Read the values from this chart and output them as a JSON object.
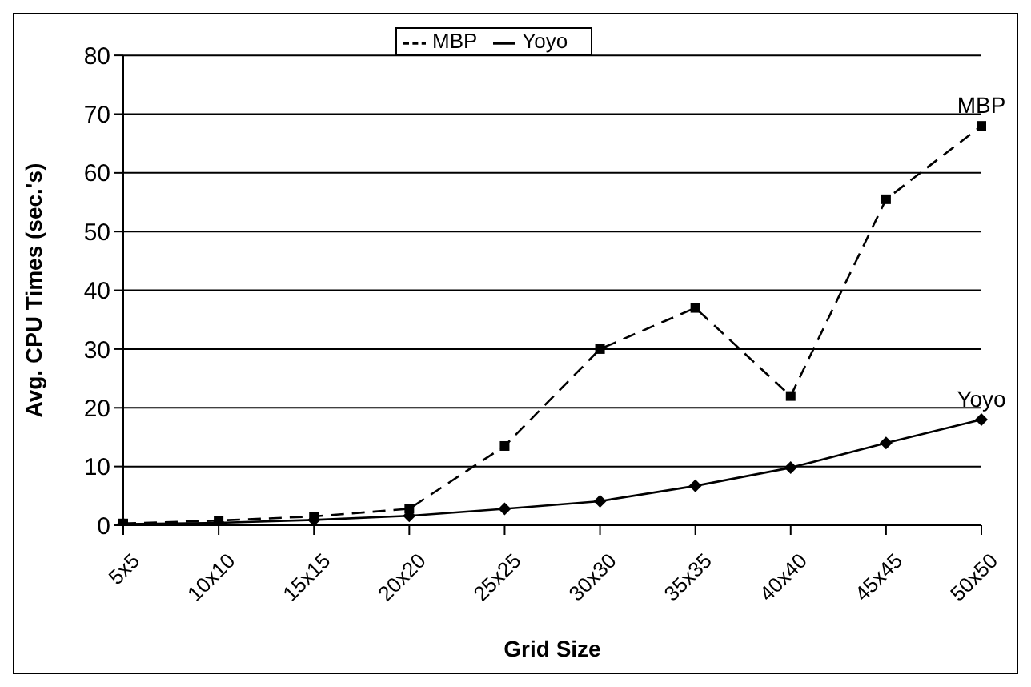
{
  "chart_data": {
    "type": "line",
    "xlabel": "Grid Size",
    "ylabel": "Avg. CPU Times (sec.'s)",
    "categories": [
      "5x5",
      "10x10",
      "15x15",
      "20x20",
      "25x25",
      "30x30",
      "35x35",
      "40x40",
      "45x45",
      "50x50"
    ],
    "series": [
      {
        "name": "MBP",
        "color": "#000000",
        "marker": "square",
        "line_style": "dashed",
        "values": [
          0.3,
          0.8,
          1.5,
          2.8,
          13.5,
          30,
          37,
          22,
          55.5,
          68
        ]
      },
      {
        "name": "Yoyo",
        "color": "#000000",
        "marker": "diamond",
        "line_style": "solid",
        "values": [
          0.2,
          0.4,
          0.9,
          1.6,
          2.8,
          4.1,
          6.7,
          9.8,
          14,
          18
        ]
      }
    ],
    "ylim": [
      0,
      80
    ],
    "yticks": [
      0,
      10,
      20,
      30,
      40,
      50,
      60,
      70,
      80
    ],
    "grid": "y",
    "legend": "top",
    "annotations": [
      {
        "text": "MBP",
        "x": "50x50",
        "y": 68
      },
      {
        "text": "Yoyo",
        "x": "50x50",
        "y": 18
      }
    ]
  }
}
